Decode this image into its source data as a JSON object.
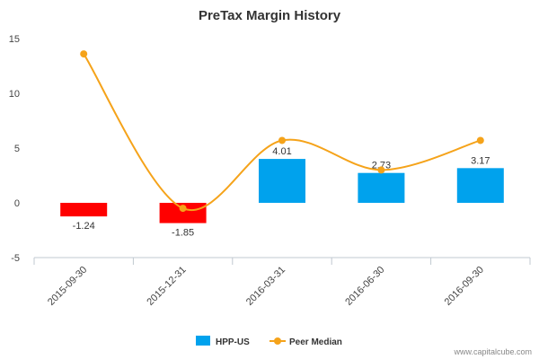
{
  "chart_data": {
    "type": "bar",
    "title": "PreTax Margin History",
    "categories": [
      "2015-09-30",
      "2015-12-31",
      "2016-03-31",
      "2016-06-30",
      "2016-09-30"
    ],
    "series": [
      {
        "name": "HPP-US",
        "type": "bar",
        "values": [
          -1.24,
          -1.85,
          4.01,
          2.73,
          3.17
        ],
        "data_labels": [
          "-1.24",
          "-1.85",
          "4.01",
          "2.73",
          "3.17"
        ],
        "color_positive": "#00a2ed",
        "color_negative": "#ff0000"
      },
      {
        "name": "Peer Median",
        "type": "line",
        "values": [
          13.6,
          -0.5,
          5.7,
          3.0,
          5.7
        ],
        "color": "#f5a31a"
      }
    ],
    "ylim": [
      -5,
      15
    ],
    "yticks": [
      "15",
      "10",
      "5",
      "0",
      "-5"
    ],
    "ytick_values": [
      15,
      10,
      5,
      0,
      -5
    ],
    "grid": false,
    "legend_position": "bottom"
  },
  "watermark": "www.capitalcube.com",
  "colors": {
    "axis": "#c0c8d0",
    "text": "#333333"
  }
}
